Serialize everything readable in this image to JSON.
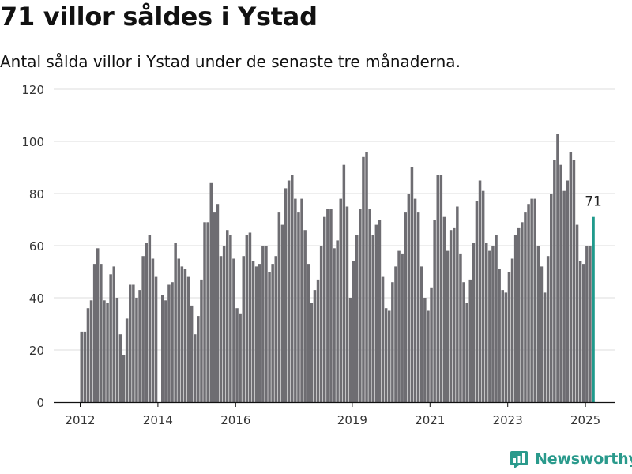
{
  "title": "71 villor såldes i Ystad",
  "subtitle": "Antal sålda villor i Ystad under de senaste tre månaderna.",
  "brand": {
    "name": "Newsworthy",
    "icon": "newsworthy-logo-icon",
    "color": "#2a9a8c"
  },
  "chart_data": {
    "type": "bar",
    "ylim": [
      0,
      120
    ],
    "yticks": [
      0,
      20,
      40,
      60,
      80,
      100,
      120
    ],
    "xticks": [
      "2012",
      "2014",
      "2016",
      "2019",
      "2021",
      "2023",
      "2025"
    ],
    "bar_color": "#6e6d72",
    "highlight_color": "#1f9a8c",
    "grid": true,
    "series": [
      {
        "values": [
          27,
          27,
          36,
          39,
          53,
          59,
          53,
          39,
          38,
          49,
          52,
          40,
          26,
          18,
          32,
          45,
          45,
          40,
          43,
          56,
          61,
          64,
          55,
          48,
          0,
          41,
          39,
          45,
          46,
          61,
          55,
          52,
          51,
          48,
          37,
          26,
          33,
          47,
          69,
          69,
          84,
          73,
          76,
          56,
          60,
          66,
          64,
          55,
          36,
          34,
          56,
          64,
          65,
          54,
          52,
          53,
          60,
          60,
          50,
          53,
          56,
          73,
          68,
          82,
          85,
          87,
          78,
          73,
          78,
          66,
          53,
          38,
          43,
          47,
          60,
          71,
          74,
          74,
          59,
          62,
          78,
          91,
          75,
          40,
          54,
          64,
          74,
          94,
          96,
          74,
          64,
          68,
          70,
          48,
          36,
          35,
          46,
          52,
          58,
          57,
          73,
          80,
          90,
          78,
          73,
          52,
          40,
          35,
          44,
          70,
          87,
          87,
          71,
          58,
          66,
          67,
          75,
          57,
          46,
          38,
          47,
          61,
          77,
          85,
          81,
          61,
          58,
          60,
          64,
          51,
          43,
          42,
          50,
          55,
          64,
          67,
          69,
          73,
          76,
          78,
          78,
          60,
          52,
          42,
          56,
          80,
          93,
          103,
          91,
          81,
          85,
          96,
          93,
          68,
          54,
          53,
          60,
          60,
          71
        ]
      }
    ],
    "annotations": [
      {
        "label": "71"
      }
    ]
  }
}
